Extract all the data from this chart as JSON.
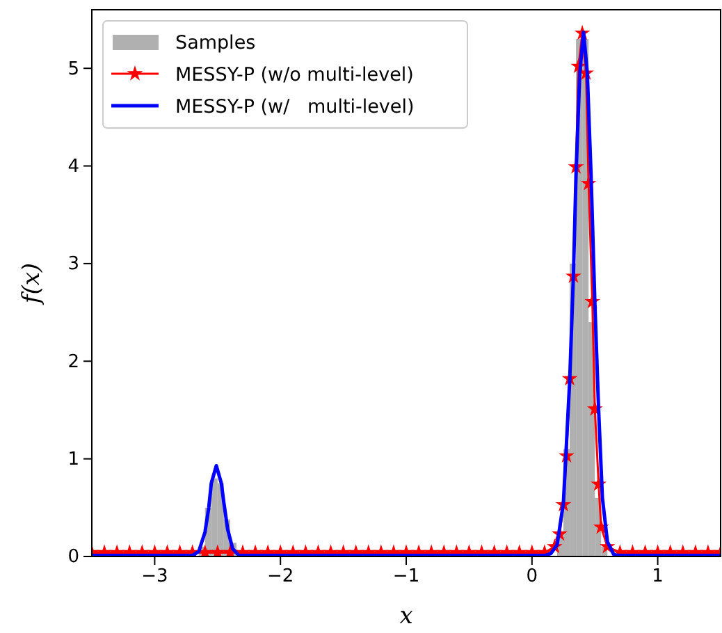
{
  "chart_data": {
    "type": "line",
    "xlabel": "x",
    "ylabel": "f(x)",
    "xlim": [
      -3.5,
      1.5
    ],
    "ylim": [
      0,
      5.6
    ],
    "xticks": [
      {
        "value": -3,
        "label": "−3"
      },
      {
        "value": -2,
        "label": "−2"
      },
      {
        "value": -1,
        "label": "−1"
      },
      0,
      1
    ],
    "yticks": [
      0,
      1,
      2,
      3,
      4,
      5
    ],
    "legend": "top left",
    "series": [
      {
        "type": "histogram",
        "name": "Samples",
        "color": "#b0b0b0",
        "bins": [
          -2.65,
          -2.6,
          -2.55,
          -2.5,
          -2.45,
          -2.4,
          -2.35,
          -2.3,
          -2.25,
          -2.2,
          -2.15,
          -2.1,
          -2.05,
          -2.0,
          -1.95,
          -1.9,
          -1.85,
          -1.8,
          -1.75,
          -1.7,
          -1.65,
          -1.6,
          -1.55,
          -1.5,
          -1.45,
          -1.4,
          -1.35,
          -1.3,
          -1.25,
          -1.2,
          -1.15,
          -1.1,
          -1.05,
          -1.0,
          -0.95,
          -0.9,
          -0.85,
          -0.8,
          -0.75,
          -0.7,
          -0.65,
          -0.6,
          -0.55,
          -0.5,
          -0.45,
          -0.4,
          -0.35,
          -0.3,
          -0.25,
          -0.2,
          -0.15,
          -0.1,
          -0.05,
          0.0,
          0.05,
          0.1,
          0.15,
          0.2,
          0.25,
          0.3,
          0.35,
          0.4,
          0.45,
          0.5,
          0.55,
          0.6
        ],
        "values": [
          0.1,
          0.5,
          0.8,
          0.75,
          0.38,
          0.14,
          0,
          0,
          0,
          0,
          0,
          0,
          0,
          0,
          0,
          0,
          0,
          0,
          0,
          0,
          0,
          0,
          0,
          0,
          0,
          0,
          0,
          0,
          0,
          0,
          0,
          0,
          0,
          0,
          0,
          0,
          0,
          0,
          0,
          0,
          0,
          0,
          0,
          0,
          0,
          0,
          0,
          0,
          0,
          0,
          0,
          0,
          0,
          0,
          0,
          0,
          0,
          0.2,
          1.1,
          3.0,
          5.3,
          5.3,
          2.4,
          0.6,
          0.1
        ]
      },
      {
        "name": "MESSY-P (w/o multi-level)",
        "color": "#ff0000",
        "marker": "star",
        "x": [
          -3.5,
          -3.4,
          -3.3,
          -3.2,
          -3.1,
          -3.0,
          -2.9,
          -2.8,
          -2.7,
          -2.6,
          -2.5,
          -2.4,
          -2.3,
          -2.2,
          -2.1,
          -2.0,
          -1.9,
          -1.8,
          -1.7,
          -1.6,
          -1.5,
          -1.4,
          -1.3,
          -1.2,
          -1.1,
          -1.0,
          -0.9,
          -0.8,
          -0.7,
          -0.6,
          -0.5,
          -0.4,
          -0.3,
          -0.2,
          -0.1,
          0.0,
          0.1,
          0.18,
          0.22,
          0.25,
          0.275,
          0.3,
          0.33,
          0.35,
          0.37,
          0.4,
          0.43,
          0.45,
          0.48,
          0.5,
          0.53,
          0.55,
          0.6,
          0.7,
          0.8,
          0.9,
          1.0,
          1.1,
          1.2,
          1.3,
          1.4,
          1.5
        ],
        "values": [
          0.04,
          0.04,
          0.04,
          0.04,
          0.04,
          0.04,
          0.04,
          0.04,
          0.04,
          0.04,
          0.04,
          0.04,
          0.04,
          0.04,
          0.04,
          0.04,
          0.04,
          0.04,
          0.04,
          0.04,
          0.04,
          0.04,
          0.04,
          0.04,
          0.04,
          0.04,
          0.04,
          0.04,
          0.04,
          0.04,
          0.04,
          0.04,
          0.04,
          0.04,
          0.04,
          0.04,
          0.04,
          0.1,
          0.23,
          0.53,
          1.03,
          1.82,
          2.87,
          3.99,
          5.02,
          5.36,
          4.95,
          3.82,
          2.61,
          1.51,
          0.74,
          0.3,
          0.1,
          0.04,
          0.04,
          0.04,
          0.04,
          0.04,
          0.04,
          0.04,
          0.04,
          0.04
        ]
      },
      {
        "name": "MESSY-P (w/   multi-level)",
        "color": "#0000ff",
        "marker": "none",
        "x": [
          -3.5,
          -2.7,
          -2.65,
          -2.6,
          -2.57,
          -2.55,
          -2.51,
          -2.47,
          -2.45,
          -2.42,
          -2.38,
          -2.33,
          0.1,
          0.15,
          0.2,
          0.25,
          0.3,
          0.33,
          0.35,
          0.38,
          0.41,
          0.44,
          0.47,
          0.5,
          0.53,
          0.56,
          0.6,
          0.65,
          0.7,
          1.5
        ],
        "values": [
          0.01,
          0.01,
          0.05,
          0.25,
          0.5,
          0.75,
          0.93,
          0.75,
          0.55,
          0.28,
          0.08,
          0.01,
          0.01,
          0.03,
          0.12,
          0.55,
          1.8,
          2.9,
          3.9,
          4.95,
          5.37,
          4.95,
          3.9,
          2.6,
          1.5,
          0.6,
          0.15,
          0.02,
          0.01,
          0.01
        ]
      }
    ]
  }
}
